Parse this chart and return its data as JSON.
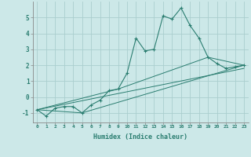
{
  "xlabel": "Humidex (Indice chaleur)",
  "xlim": [
    -0.5,
    23.5
  ],
  "ylim": [
    -1.6,
    6.0
  ],
  "xticks": [
    0,
    1,
    2,
    3,
    4,
    5,
    6,
    7,
    8,
    9,
    10,
    11,
    12,
    13,
    14,
    15,
    16,
    17,
    18,
    19,
    20,
    21,
    22,
    23
  ],
  "yticks": [
    -1,
    0,
    1,
    2,
    3,
    4,
    5
  ],
  "background_color": "#cce8e8",
  "line_color": "#2a7d70",
  "grid_color": "#aacece",
  "series": [
    {
      "x": [
        0,
        1,
        2,
        3,
        4,
        5,
        6,
        7,
        8,
        9,
        10,
        11,
        12,
        13,
        14,
        15,
        16,
        17,
        18,
        19,
        20,
        21,
        22,
        23
      ],
      "y": [
        -0.8,
        -1.2,
        -0.7,
        -0.6,
        -0.6,
        -1.0,
        -0.5,
        -0.2,
        0.4,
        0.5,
        1.5,
        3.7,
        2.9,
        3.0,
        5.1,
        4.9,
        5.6,
        4.5,
        3.7,
        2.5,
        2.1,
        1.8,
        1.9,
        2.0
      ]
    },
    {
      "x": [
        0,
        5,
        23
      ],
      "y": [
        -0.8,
        -1.0,
        2.0
      ]
    },
    {
      "x": [
        0,
        9,
        19,
        23
      ],
      "y": [
        -0.8,
        0.5,
        2.5,
        2.0
      ]
    },
    {
      "x": [
        0,
        23
      ],
      "y": [
        -0.8,
        1.8
      ]
    }
  ]
}
